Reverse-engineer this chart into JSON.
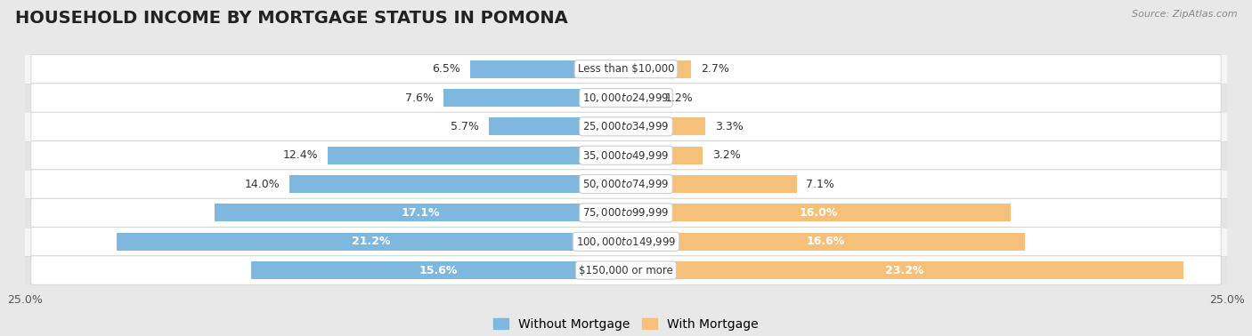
{
  "title": "HOUSEHOLD INCOME BY MORTGAGE STATUS IN POMONA",
  "source": "Source: ZipAtlas.com",
  "categories": [
    "Less than $10,000",
    "$10,000 to $24,999",
    "$25,000 to $34,999",
    "$35,000 to $49,999",
    "$50,000 to $74,999",
    "$75,000 to $99,999",
    "$100,000 to $149,999",
    "$150,000 or more"
  ],
  "without_mortgage": [
    6.5,
    7.6,
    5.7,
    12.4,
    14.0,
    17.1,
    21.2,
    15.6
  ],
  "with_mortgage": [
    2.7,
    1.2,
    3.3,
    3.2,
    7.1,
    16.0,
    16.6,
    23.2
  ],
  "color_without": "#7eb8df",
  "color_with": "#f5c07a",
  "axis_max": 25.0,
  "bg_outer": "#e8e8e8",
  "bg_row_light": "#f5f5f5",
  "bg_row_dark": "#e4e4e4",
  "bg_white": "#ffffff",
  "title_fontsize": 14,
  "label_fontsize": 9,
  "tick_fontsize": 9,
  "legend_fontsize": 10,
  "category_fontsize": 8.5
}
